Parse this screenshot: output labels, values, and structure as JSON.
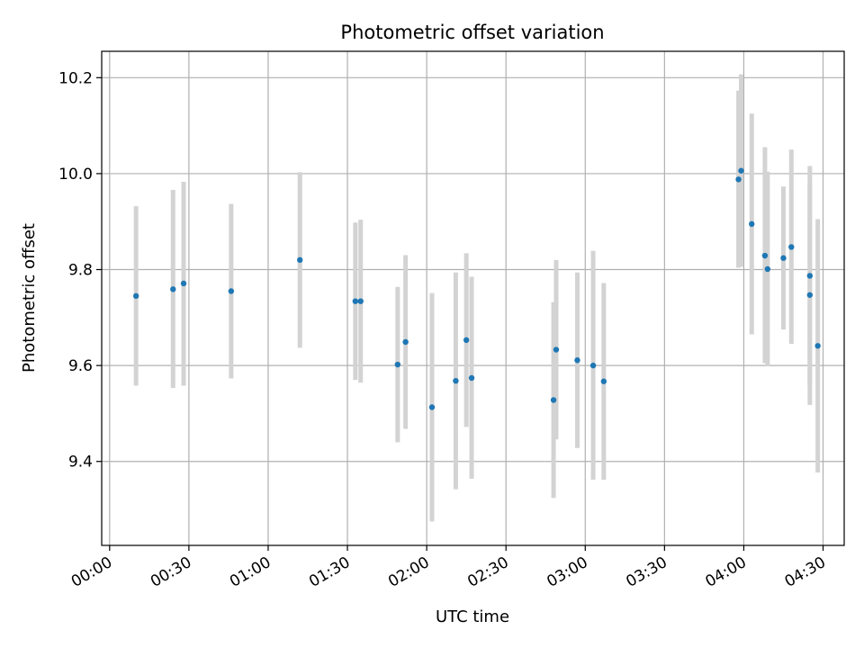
{
  "chart_data": {
    "type": "scatter",
    "title": "Photometric offset variation",
    "xlabel": "UTC time",
    "ylabel": "Photometric offset",
    "x_unit": "time of day (HH:MM, UTC)",
    "xlim": [
      "23:57",
      "04:38"
    ],
    "ylim": [
      9.225,
      10.255
    ],
    "x_ticks": [
      "00:00",
      "00:30",
      "01:00",
      "01:30",
      "02:00",
      "02:30",
      "03:00",
      "03:30",
      "04:00",
      "04:30"
    ],
    "y_ticks": [
      "9.4",
      "9.6",
      "9.8",
      "10.0",
      "10.2"
    ],
    "grid": true,
    "legend": "none",
    "marker_color": "#1f77b4",
    "errorbar_color": "#d3d3d3",
    "series": [
      {
        "points": [
          {
            "x": "00:10",
            "y": 9.745,
            "ylow": 9.558,
            "yhigh": 9.932
          },
          {
            "x": "00:24",
            "y": 9.759,
            "ylow": 9.553,
            "yhigh": 9.966
          },
          {
            "x": "00:28",
            "y": 9.771,
            "ylow": 9.558,
            "yhigh": 9.983
          },
          {
            "x": "00:46",
            "y": 9.755,
            "ylow": 9.573,
            "yhigh": 9.937
          },
          {
            "x": "01:12",
            "y": 9.82,
            "ylow": 9.637,
            "yhigh": 10.003
          },
          {
            "x": "01:33",
            "y": 9.734,
            "ylow": 9.57,
            "yhigh": 9.898
          },
          {
            "x": "01:35",
            "y": 9.734,
            "ylow": 9.564,
            "yhigh": 9.904
          },
          {
            "x": "01:49",
            "y": 9.602,
            "ylow": 9.44,
            "yhigh": 9.764
          },
          {
            "x": "01:52",
            "y": 9.649,
            "ylow": 9.468,
            "yhigh": 9.83
          },
          {
            "x": "02:02",
            "y": 9.513,
            "ylow": 9.275,
            "yhigh": 9.751
          },
          {
            "x": "02:11",
            "y": 9.568,
            "ylow": 9.342,
            "yhigh": 9.794
          },
          {
            "x": "02:15",
            "y": 9.653,
            "ylow": 9.472,
            "yhigh": 9.834
          },
          {
            "x": "02:17",
            "y": 9.574,
            "ylow": 9.364,
            "yhigh": 9.785
          },
          {
            "x": "02:48",
            "y": 9.528,
            "ylow": 9.324,
            "yhigh": 9.732
          },
          {
            "x": "02:49",
            "y": 9.633,
            "ylow": 9.446,
            "yhigh": 9.82
          },
          {
            "x": "02:57",
            "y": 9.611,
            "ylow": 9.428,
            "yhigh": 9.794
          },
          {
            "x": "03:03",
            "y": 9.6,
            "ylow": 9.362,
            "yhigh": 9.839
          },
          {
            "x": "03:07",
            "y": 9.567,
            "ylow": 9.362,
            "yhigh": 9.772
          },
          {
            "x": "03:58",
            "y": 9.988,
            "ylow": 9.804,
            "yhigh": 10.173
          },
          {
            "x": "03:59",
            "y": 10.006,
            "ylow": 9.806,
            "yhigh": 10.207
          },
          {
            "x": "04:03",
            "y": 9.895,
            "ylow": 9.665,
            "yhigh": 10.125
          },
          {
            "x": "04:08",
            "y": 9.829,
            "ylow": 9.605,
            "yhigh": 10.055
          },
          {
            "x": "04:09",
            "y": 9.801,
            "ylow": 9.598,
            "yhigh": 10.004
          },
          {
            "x": "04:15",
            "y": 9.824,
            "ylow": 9.675,
            "yhigh": 9.973
          },
          {
            "x": "04:18",
            "y": 9.847,
            "ylow": 9.645,
            "yhigh": 10.05
          },
          {
            "x": "04:25",
            "y": 9.747,
            "ylow": 9.518,
            "yhigh": 9.98
          },
          {
            "x": "04:25",
            "y": 9.787,
            "ylow": 9.558,
            "yhigh": 10.016
          },
          {
            "x": "04:28",
            "y": 9.641,
            "ylow": 9.377,
            "yhigh": 9.905
          }
        ]
      }
    ]
  }
}
